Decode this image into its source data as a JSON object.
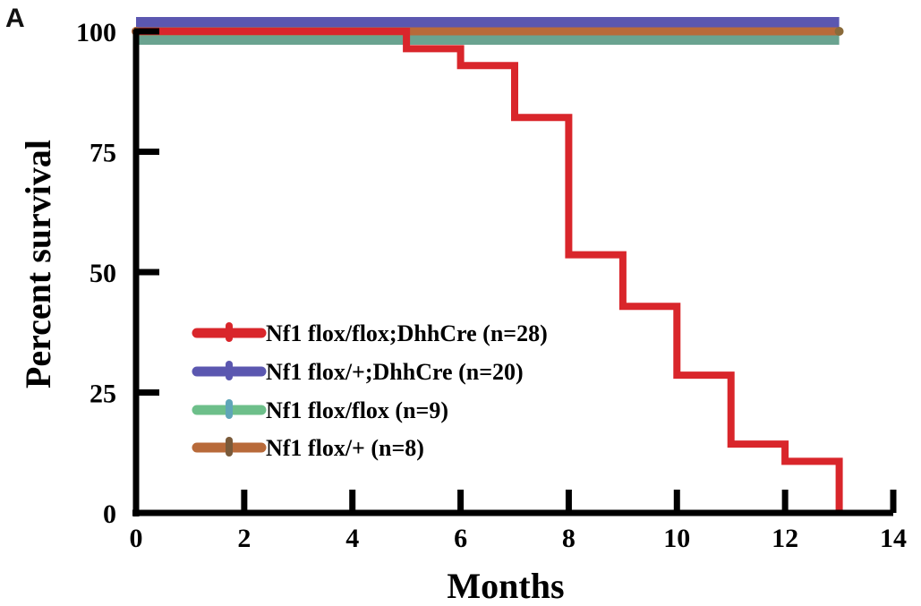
{
  "panel_label": "A",
  "chart_data": {
    "type": "line",
    "xlabel": "Months",
    "ylabel": "Percent survival",
    "xlim": [
      0,
      14
    ],
    "ylim": [
      0,
      100
    ],
    "xticks": [
      0,
      2,
      4,
      6,
      8,
      10,
      12,
      14
    ],
    "yticks": [
      0,
      25,
      50,
      75,
      100
    ],
    "xtick_labels": [
      "0",
      "2",
      "4",
      "6",
      "8",
      "10",
      "12",
      "14"
    ],
    "ytick_labels": [
      "0",
      "25",
      "50",
      "75",
      "100"
    ],
    "grid": false,
    "legend_position": "lower-left",
    "step": true,
    "series": [
      {
        "name": "Nf1 flox/flox;DhhCre (n=28)",
        "color": "#d9262b",
        "x": [
          0,
          5,
          6,
          7,
          8,
          9,
          10,
          11,
          12,
          13,
          13
        ],
        "y": [
          100,
          96.4,
          92.9,
          82.1,
          53.6,
          42.9,
          28.6,
          14.3,
          10.7,
          10.7,
          0
        ]
      },
      {
        "name": "Nf1 flox/+;DhhCre (n=20)",
        "color": "#5b57b0",
        "x": [
          0,
          13
        ],
        "y": [
          100,
          100
        ]
      },
      {
        "name": "Nf1 flox/flox (n=9)",
        "color": "#6aa390",
        "x": [
          0,
          13
        ],
        "y": [
          100,
          100
        ]
      },
      {
        "name": "Nf1 flox/+ (n=8)",
        "color": "#b86a3a",
        "x": [
          0,
          13
        ],
        "y": [
          100,
          100
        ]
      }
    ],
    "legend_marker_colors": [
      "#d9262b",
      "#5b57b0",
      "#5fa6b8",
      "#7a5a3a"
    ],
    "legend_line_colors": [
      "#d9262b",
      "#5b57b0",
      "#6dbf8a",
      "#b86a3a"
    ]
  }
}
